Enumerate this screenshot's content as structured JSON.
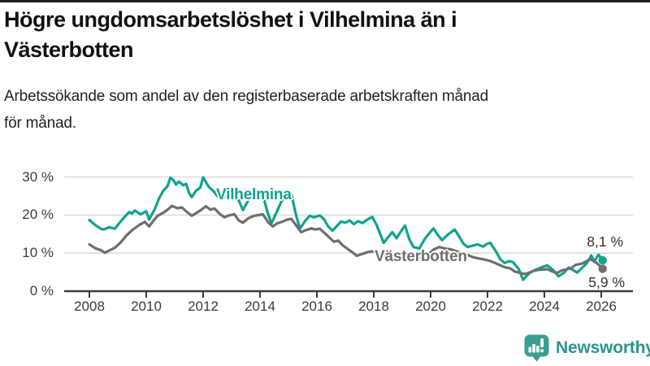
{
  "header": {
    "title_lines": [
      "Högre ungdomsarbetslöshet i Vilhelmina än i",
      "Västerbotten"
    ],
    "subtitle_lines": [
      "Arbetssökande som andel av den registerbaserade arbetskraften månad",
      "för månad."
    ]
  },
  "footer": {
    "brand": "Newsworthy",
    "logo_icon": "bar-chart-speech-bubble-icon"
  },
  "colors": {
    "vilhelmina_teal": "#12A28F",
    "vasterbotten_gray": "#6F6F6F",
    "axis": "#3C3C3C",
    "grid": "#DCDCDC",
    "label_text": "#333333",
    "brand_teal": "#2C948D",
    "logo_fill": "#3B9E93"
  },
  "chart_data": {
    "type": "line",
    "title": "Högre ungdomsarbetslöshet i Vilhelmina än i Västerbotten",
    "subtitle": "Arbetssökande som andel av den registerbaserade arbetskraften månad för månad.",
    "unit": "%",
    "xlim": [
      2008,
      2026.4
    ],
    "ylim": [
      0,
      32
    ],
    "grid": "horizontal",
    "legend_position": "inline-labels",
    "x_ticks": [
      2008,
      2010,
      2012,
      2014,
      2016,
      2018,
      2020,
      2022,
      2024,
      2026
    ],
    "y_ticks": [
      {
        "v": 0,
        "label": "0 %"
      },
      {
        "v": 10,
        "label": "10 %"
      },
      {
        "v": 20,
        "label": "20 %"
      },
      {
        "v": 30,
        "label": "30 %"
      }
    ],
    "series": [
      {
        "name": "Vilhelmina",
        "color": "#12A28F",
        "end_label": "8,1 %",
        "end_value": 8.1,
        "points": [
          [
            2008.0,
            18.7
          ],
          [
            2008.2,
            17.4
          ],
          [
            2008.4,
            16.4
          ],
          [
            2008.5,
            16.2
          ],
          [
            2008.7,
            16.8
          ],
          [
            2008.9,
            16.4
          ],
          [
            2009.0,
            17.4
          ],
          [
            2009.2,
            19.2
          ],
          [
            2009.4,
            20.8
          ],
          [
            2009.5,
            20.4
          ],
          [
            2009.6,
            21.2
          ],
          [
            2009.8,
            20.2
          ],
          [
            2010.0,
            21.0
          ],
          [
            2010.1,
            18.8
          ],
          [
            2010.3,
            21.6
          ],
          [
            2010.45,
            24.4
          ],
          [
            2010.6,
            26.4
          ],
          [
            2010.75,
            27.6
          ],
          [
            2010.85,
            29.8
          ],
          [
            2010.95,
            29.2
          ],
          [
            2011.05,
            28.0
          ],
          [
            2011.15,
            28.8
          ],
          [
            2011.3,
            27.8
          ],
          [
            2011.4,
            28.2
          ],
          [
            2011.5,
            25.9
          ],
          [
            2011.6,
            24.7
          ],
          [
            2011.75,
            26.4
          ],
          [
            2011.9,
            27.2
          ],
          [
            2012.0,
            29.9
          ],
          [
            2012.2,
            27.4
          ],
          [
            2012.35,
            26.4
          ],
          [
            2012.5,
            25.0
          ],
          [
            2012.65,
            24.2
          ],
          [
            2012.8,
            25.1
          ],
          [
            2013.0,
            25.5
          ],
          [
            2013.25,
            23.9
          ],
          [
            2013.4,
            21.3
          ],
          [
            2013.6,
            24.0
          ],
          [
            2013.75,
            25.2
          ],
          [
            2013.9,
            25.8
          ],
          [
            2014.1,
            25.4
          ],
          [
            2014.25,
            21.0
          ],
          [
            2014.4,
            17.8
          ],
          [
            2014.6,
            21.0
          ],
          [
            2014.75,
            23.6
          ],
          [
            2014.9,
            25.2
          ],
          [
            2015.1,
            25.6
          ],
          [
            2015.25,
            20.5
          ],
          [
            2015.4,
            16.4
          ],
          [
            2015.6,
            18.6
          ],
          [
            2015.75,
            19.8
          ],
          [
            2015.9,
            19.4
          ],
          [
            2016.1,
            19.9
          ],
          [
            2016.25,
            18.9
          ],
          [
            2016.4,
            17.0
          ],
          [
            2016.55,
            15.9
          ],
          [
            2016.7,
            17.1
          ],
          [
            2016.85,
            18.3
          ],
          [
            2017.0,
            18.0
          ],
          [
            2017.15,
            18.6
          ],
          [
            2017.3,
            17.6
          ],
          [
            2017.45,
            18.4
          ],
          [
            2017.6,
            17.9
          ],
          [
            2017.8,
            18.9
          ],
          [
            2017.95,
            19.5
          ],
          [
            2018.1,
            17.4
          ],
          [
            2018.35,
            12.7
          ],
          [
            2018.55,
            14.6
          ],
          [
            2018.65,
            15.5
          ],
          [
            2018.8,
            13.9
          ],
          [
            2019.0,
            16.2
          ],
          [
            2019.1,
            17.2
          ],
          [
            2019.25,
            13.6
          ],
          [
            2019.4,
            11.6
          ],
          [
            2019.6,
            11.2
          ],
          [
            2019.8,
            13.8
          ],
          [
            2019.95,
            15.2
          ],
          [
            2020.1,
            16.5
          ],
          [
            2020.25,
            14.8
          ],
          [
            2020.4,
            13.4
          ],
          [
            2020.6,
            14.8
          ],
          [
            2020.85,
            16.2
          ],
          [
            2021.0,
            14.4
          ],
          [
            2021.15,
            12.5
          ],
          [
            2021.3,
            11.6
          ],
          [
            2021.5,
            12.0
          ],
          [
            2021.65,
            12.3
          ],
          [
            2021.85,
            11.7
          ],
          [
            2022.0,
            12.5
          ],
          [
            2022.1,
            12.7
          ],
          [
            2022.3,
            10.4
          ],
          [
            2022.45,
            8.4
          ],
          [
            2022.6,
            7.4
          ],
          [
            2022.75,
            7.9
          ],
          [
            2022.9,
            7.6
          ],
          [
            2023.1,
            5.8
          ],
          [
            2023.25,
            3.0
          ],
          [
            2023.45,
            4.6
          ],
          [
            2023.6,
            5.3
          ],
          [
            2023.75,
            5.8
          ],
          [
            2023.95,
            6.4
          ],
          [
            2024.1,
            6.8
          ],
          [
            2024.3,
            5.6
          ],
          [
            2024.5,
            3.9
          ],
          [
            2024.7,
            4.9
          ],
          [
            2024.85,
            6.2
          ],
          [
            2025.0,
            5.6
          ],
          [
            2025.15,
            4.9
          ],
          [
            2025.35,
            6.3
          ],
          [
            2025.5,
            7.4
          ],
          [
            2025.65,
            9.4
          ],
          [
            2025.75,
            7.7
          ],
          [
            2025.9,
            9.6
          ],
          [
            2026.05,
            8.1
          ]
        ]
      },
      {
        "name": "Västerbotten",
        "color": "#6F6F6F",
        "end_label": "5,9 %",
        "end_value": 5.9,
        "points": [
          [
            2008.0,
            12.3
          ],
          [
            2008.2,
            11.3
          ],
          [
            2008.4,
            10.8
          ],
          [
            2008.55,
            10.1
          ],
          [
            2008.7,
            10.7
          ],
          [
            2008.9,
            11.4
          ],
          [
            2009.1,
            12.8
          ],
          [
            2009.3,
            14.6
          ],
          [
            2009.5,
            16.0
          ],
          [
            2009.75,
            17.4
          ],
          [
            2009.95,
            18.2
          ],
          [
            2010.1,
            17.0
          ],
          [
            2010.25,
            18.5
          ],
          [
            2010.4,
            19.8
          ],
          [
            2010.6,
            20.6
          ],
          [
            2010.75,
            21.4
          ],
          [
            2010.9,
            22.4
          ],
          [
            2011.1,
            21.8
          ],
          [
            2011.25,
            22.0
          ],
          [
            2011.4,
            21.0
          ],
          [
            2011.6,
            19.8
          ],
          [
            2011.75,
            20.5
          ],
          [
            2011.9,
            21.2
          ],
          [
            2012.1,
            22.3
          ],
          [
            2012.25,
            21.4
          ],
          [
            2012.4,
            21.7
          ],
          [
            2012.6,
            20.2
          ],
          [
            2012.75,
            19.4
          ],
          [
            2012.9,
            19.9
          ],
          [
            2013.1,
            20.2
          ],
          [
            2013.25,
            18.6
          ],
          [
            2013.4,
            18.0
          ],
          [
            2013.6,
            19.2
          ],
          [
            2013.8,
            19.8
          ],
          [
            2013.95,
            20.0
          ],
          [
            2014.1,
            20.2
          ],
          [
            2014.3,
            18.0
          ],
          [
            2014.45,
            17.0
          ],
          [
            2014.6,
            17.8
          ],
          [
            2014.8,
            18.3
          ],
          [
            2014.95,
            18.8
          ],
          [
            2015.1,
            19.0
          ],
          [
            2015.3,
            17.0
          ],
          [
            2015.45,
            15.5
          ],
          [
            2015.6,
            16.0
          ],
          [
            2015.8,
            16.5
          ],
          [
            2015.95,
            16.2
          ],
          [
            2016.1,
            16.4
          ],
          [
            2016.3,
            15.1
          ],
          [
            2016.45,
            14.0
          ],
          [
            2016.6,
            13.0
          ],
          [
            2016.75,
            13.3
          ],
          [
            2016.9,
            12.1
          ],
          [
            2017.1,
            11.0
          ],
          [
            2017.25,
            10.2
          ],
          [
            2017.4,
            9.3
          ],
          [
            2017.6,
            9.8
          ],
          [
            2017.8,
            10.3
          ],
          [
            2017.95,
            10.5
          ],
          [
            2018.1,
            10.2
          ],
          [
            2018.3,
            9.3
          ],
          [
            2018.45,
            8.8
          ],
          [
            2018.6,
            9.3
          ],
          [
            2018.8,
            9.6
          ],
          [
            2019.0,
            9.8
          ],
          [
            2019.1,
            9.9
          ],
          [
            2019.3,
            9.0
          ],
          [
            2019.45,
            8.5
          ],
          [
            2019.6,
            8.7
          ],
          [
            2019.8,
            9.0
          ],
          [
            2019.95,
            9.9
          ],
          [
            2020.1,
            10.9
          ],
          [
            2020.3,
            11.6
          ],
          [
            2020.5,
            11.2
          ],
          [
            2020.7,
            11.0
          ],
          [
            2020.9,
            10.5
          ],
          [
            2021.1,
            10.1
          ],
          [
            2021.3,
            9.5
          ],
          [
            2021.5,
            8.9
          ],
          [
            2021.7,
            8.6
          ],
          [
            2021.9,
            8.3
          ],
          [
            2022.1,
            7.9
          ],
          [
            2022.3,
            7.3
          ],
          [
            2022.45,
            6.8
          ],
          [
            2022.6,
            6.3
          ],
          [
            2022.8,
            6.0
          ],
          [
            2022.95,
            5.2
          ],
          [
            2023.1,
            4.9
          ],
          [
            2023.3,
            4.5
          ],
          [
            2023.45,
            4.8
          ],
          [
            2023.6,
            5.3
          ],
          [
            2023.8,
            5.6
          ],
          [
            2023.95,
            5.7
          ],
          [
            2024.1,
            5.8
          ],
          [
            2024.3,
            5.1
          ],
          [
            2024.45,
            4.8
          ],
          [
            2024.6,
            5.4
          ],
          [
            2024.8,
            5.8
          ],
          [
            2024.95,
            6.1
          ],
          [
            2025.1,
            6.9
          ],
          [
            2025.3,
            7.2
          ],
          [
            2025.45,
            7.7
          ],
          [
            2025.6,
            8.4
          ],
          [
            2025.75,
            7.9
          ],
          [
            2025.9,
            7.0
          ],
          [
            2026.05,
            5.9
          ]
        ]
      }
    ]
  }
}
